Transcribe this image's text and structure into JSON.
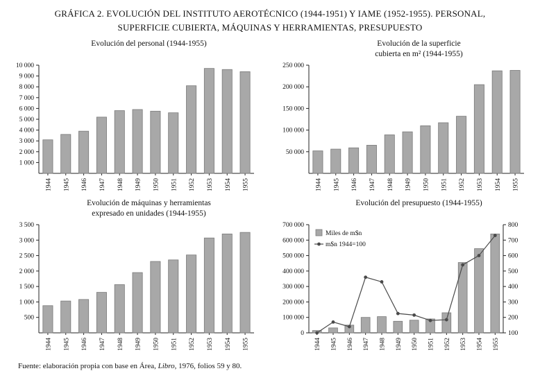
{
  "page": {
    "title_line1": "GRÁFICA 2. EVOLUCIÓN DEL INSTITUTO AEROTÉCNICO (1944-1951) Y IAME (1952-1955). PERSONAL,",
    "title_line2": "SUPERFICIE CUBIERTA, MÁQUINAS Y HERRAMIENTAS, PRESUPUESTO",
    "source_prefix": "Fuente: elaboración propia con base en Área, ",
    "source_italic": "Libro",
    "source_suffix": ", 1976, folios 59 y 80."
  },
  "chart_data": [
    {
      "type": "bar",
      "title_lines": [
        "Evolución del personal (1944-1955)"
      ],
      "categories": [
        "1944",
        "1945",
        "1946",
        "1947",
        "1948",
        "1949",
        "1950",
        "1951",
        "1952",
        "1953",
        "1954",
        "1955"
      ],
      "series": [
        {
          "name": "Personal",
          "type": "bar",
          "axis": "left",
          "values": [
            3100,
            3600,
            3900,
            5200,
            5800,
            5900,
            5750,
            5600,
            8100,
            9700,
            9600,
            9400
          ]
        }
      ],
      "ylim_left": [
        0,
        10000
      ],
      "yticks_left": [
        {
          "v": 1000,
          "label": "1 000"
        },
        {
          "v": 2000,
          "label": "2 000"
        },
        {
          "v": 3000,
          "label": "3 000"
        },
        {
          "v": 4000,
          "label": "4 000"
        },
        {
          "v": 5000,
          "label": "5 000"
        },
        {
          "v": 6000,
          "label": "6 000"
        },
        {
          "v": 7000,
          "label": "7 000"
        },
        {
          "v": 8000,
          "label": "8 000"
        },
        {
          "v": 9000,
          "label": "9 000"
        },
        {
          "v": 10000,
          "label": "10 000"
        }
      ],
      "legend": null
    },
    {
      "type": "bar",
      "title_lines": [
        "Evolución de la superficie",
        "cubierta en m² (1944-1955)"
      ],
      "categories": [
        "1944",
        "1945",
        "1946",
        "1947",
        "1948",
        "1949",
        "1950",
        "1951",
        "1952",
        "1953",
        "1954",
        "1955"
      ],
      "series": [
        {
          "name": "Superficie cubierta en m²",
          "type": "bar",
          "axis": "left",
          "values": [
            52000,
            56000,
            59000,
            65000,
            89000,
            96000,
            110000,
            117000,
            132000,
            205000,
            237000,
            238000
          ]
        }
      ],
      "ylim_left": [
        0,
        250000
      ],
      "yticks_left": [
        {
          "v": 50000,
          "label": "50 000"
        },
        {
          "v": 100000,
          "label": "100 000"
        },
        {
          "v": 150000,
          "label": "150 000"
        },
        {
          "v": 200000,
          "label": "200 000"
        },
        {
          "v": 250000,
          "label": "250 000"
        }
      ],
      "legend": null
    },
    {
      "type": "bar",
      "title_lines": [
        "Evolución de máquinas y herramientas",
        "expresado en unidades (1944-1955)"
      ],
      "categories": [
        "1944",
        "1945",
        "1946",
        "1947",
        "1948",
        "1949",
        "1950",
        "1951",
        "1952",
        "1953",
        "1954",
        "1955"
      ],
      "series": [
        {
          "name": "Máquinas y herramientas",
          "type": "bar",
          "axis": "left",
          "values": [
            880,
            1030,
            1080,
            1310,
            1560,
            1950,
            2310,
            2360,
            2520,
            3070,
            3200,
            3250
          ]
        }
      ],
      "ylim_left": [
        0,
        3500
      ],
      "yticks_left": [
        {
          "v": 500,
          "label": "500"
        },
        {
          "v": 1000,
          "label": "1 000"
        },
        {
          "v": 1500,
          "label": "1 500"
        },
        {
          "v": 2000,
          "label": "2 000"
        },
        {
          "v": 2500,
          "label": "2 500"
        },
        {
          "v": 3000,
          "label": "3 000"
        },
        {
          "v": 3500,
          "label": "3 500"
        }
      ],
      "legend": null
    },
    {
      "type": "bar+line",
      "title_lines": [
        "Evolución del presupuesto (1944-1955)"
      ],
      "categories": [
        "1944",
        "1945",
        "1946",
        "1947",
        "1948",
        "1949",
        "1950",
        "1951",
        "1952",
        "1953",
        "1954",
        "1955"
      ],
      "series": [
        {
          "name": "Miles de m$n",
          "type": "bar",
          "axis": "left",
          "values": [
            15000,
            32000,
            50000,
            100000,
            105000,
            75000,
            82000,
            90000,
            130000,
            455000,
            545000,
            640000
          ]
        },
        {
          "name": "m$n 1944=100",
          "type": "line",
          "axis": "right",
          "values": [
            100,
            170,
            140,
            460,
            430,
            225,
            215,
            180,
            185,
            540,
            600,
            730
          ]
        }
      ],
      "ylim_left": [
        0,
        700000
      ],
      "yticks_left": [
        {
          "v": 0,
          "label": "0"
        },
        {
          "v": 100000,
          "label": "100 000"
        },
        {
          "v": 200000,
          "label": "200 000"
        },
        {
          "v": 300000,
          "label": "300 000"
        },
        {
          "v": 400000,
          "label": "400 000"
        },
        {
          "v": 500000,
          "label": "500 000"
        },
        {
          "v": 600000,
          "label": "600 000"
        },
        {
          "v": 700000,
          "label": "700 000"
        }
      ],
      "ylim_right": [
        100,
        800
      ],
      "yticks_right": [
        {
          "v": 100,
          "label": "100"
        },
        {
          "v": 200,
          "label": "200"
        },
        {
          "v": 300,
          "label": "300"
        },
        {
          "v": 400,
          "label": "400"
        },
        {
          "v": 500,
          "label": "500"
        },
        {
          "v": 600,
          "label": "600"
        },
        {
          "v": 700,
          "label": "700"
        },
        {
          "v": 800,
          "label": "800"
        }
      ],
      "legend": [
        "Miles de m$n",
        "m$n 1944=100"
      ],
      "legend_position": "top-left"
    }
  ],
  "colors": {
    "bar_fill": "#a8a8a8",
    "bar_stroke": "#7a7a7a",
    "line": "#4a4a4a",
    "axis": "#222222"
  }
}
